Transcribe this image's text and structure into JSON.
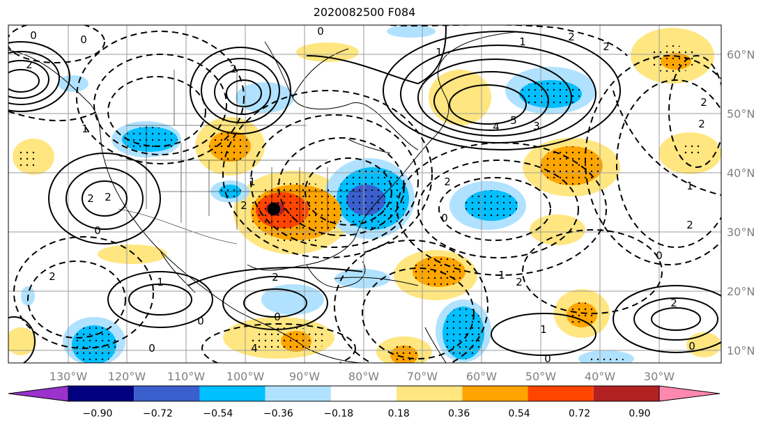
{
  "title": "2020082500 F084",
  "map": {
    "lon_ticks": [
      "130°W",
      "120°W",
      "110°W",
      "100°W",
      "90°W",
      "80°W",
      "70°W",
      "60°W",
      "50°W",
      "40°W",
      "30°W"
    ],
    "lat_ticks": [
      "60°N",
      "50°N",
      "40°N",
      "30°N",
      "20°N",
      "10°N"
    ],
    "lon_range": [
      -136,
      -15
    ],
    "lat_range": [
      7,
      65
    ],
    "grid": true,
    "contour_labels": [
      "0",
      "0",
      "2",
      "2",
      "0",
      "1",
      "1",
      "4",
      "5",
      "3",
      "2",
      "2",
      "1",
      "2",
      "0",
      "2",
      "1",
      "2",
      "2",
      "0",
      "1",
      "2",
      "0",
      "2",
      "1",
      "0",
      "2",
      "4",
      "0",
      "1",
      "0",
      "2",
      "2",
      "2",
      "1",
      "0",
      "2",
      "0"
    ],
    "marker": {
      "name": "storm-center",
      "lon": -95,
      "lat": 34
    }
  },
  "colorbar": {
    "ticks": [
      "−0.90",
      "−0.72",
      "−0.54",
      "−0.36",
      "−0.18",
      "0.18",
      "0.36",
      "0.54",
      "0.72",
      "0.90"
    ],
    "colors": [
      "#9933cc",
      "#000080",
      "#3a5fcd",
      "#00bfff",
      "#b0e2ff",
      "#ffffff",
      "#ffe680",
      "#ffa500",
      "#ff4500",
      "#b22222",
      "#ff88b0"
    ],
    "extend": "both"
  }
}
